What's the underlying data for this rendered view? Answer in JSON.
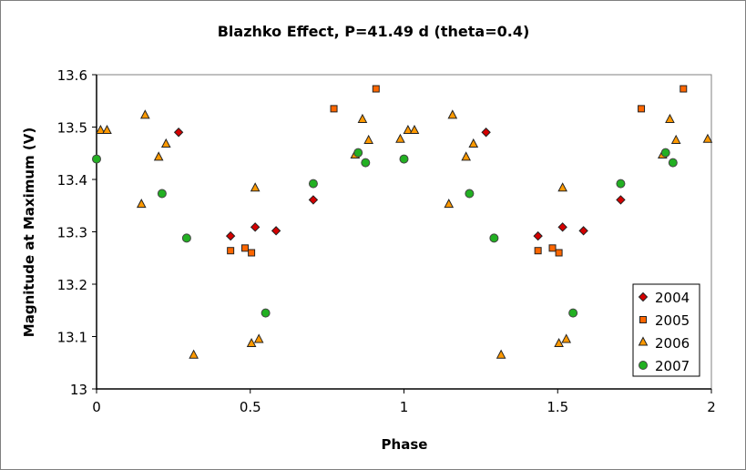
{
  "chart_data": {
    "type": "scatter",
    "title": "Blazhko Effect, P=41.49 d (theta=0.4)",
    "xlabel": "Phase",
    "ylabel": "Magnitude at Maximum (V)",
    "xlim": [
      0,
      2
    ],
    "ylim": [
      13.0,
      13.6
    ],
    "xticks": [
      "0",
      "0.5",
      "1",
      "1.5",
      "2"
    ],
    "xtick_values": [
      0,
      0.5,
      1,
      1.5,
      2
    ],
    "yticks": [
      "13",
      "13.1",
      "13.2",
      "13.3",
      "13.4",
      "13.5",
      "13.6"
    ],
    "ytick_values": [
      13.0,
      13.1,
      13.2,
      13.3,
      13.4,
      13.5,
      13.6
    ],
    "grid": false,
    "legend_position": "bottom-right",
    "series": [
      {
        "name": "2004",
        "marker": "diamond",
        "color": "#d40000",
        "x": [
          0.267,
          0.436,
          0.516,
          0.584,
          0.705,
          1.267,
          1.436,
          1.516,
          1.584,
          1.705
        ],
        "y": [
          13.49,
          13.292,
          13.309,
          13.302,
          13.361,
          13.49,
          13.292,
          13.309,
          13.302,
          13.361
        ]
      },
      {
        "name": "2005",
        "marker": "square",
        "color": "#ff6600",
        "x": [
          0.436,
          0.483,
          0.504,
          0.772,
          0.909,
          1.436,
          1.483,
          1.504,
          1.772,
          1.909
        ],
        "y": [
          13.264,
          13.269,
          13.26,
          13.535,
          13.573,
          13.264,
          13.269,
          13.26,
          13.535,
          13.573
        ]
      },
      {
        "name": "2006",
        "marker": "triangle",
        "color": "#ff9900",
        "x": [
          0.013,
          0.034,
          0.146,
          0.158,
          0.202,
          0.226,
          0.316,
          0.504,
          0.516,
          0.528,
          0.841,
          0.865,
          0.885,
          0.988,
          1.013,
          1.034,
          1.146,
          1.158,
          1.202,
          1.226,
          1.316,
          1.504,
          1.516,
          1.528,
          1.841,
          1.865,
          1.885,
          1.988
        ],
        "y": [
          13.493,
          13.493,
          13.352,
          13.522,
          13.442,
          13.467,
          13.064,
          13.086,
          13.383,
          13.094,
          13.446,
          13.514,
          13.474,
          13.476,
          13.493,
          13.493,
          13.352,
          13.522,
          13.442,
          13.467,
          13.064,
          13.086,
          13.383,
          13.094,
          13.446,
          13.514,
          13.474,
          13.476
        ]
      },
      {
        "name": "2007",
        "marker": "circle",
        "color": "#22b022",
        "x": [
          0.0,
          0.213,
          0.293,
          0.55,
          0.705,
          0.851,
          0.875,
          1.0,
          1.213,
          1.293,
          1.55,
          1.705,
          1.851,
          1.875
        ],
        "y": [
          13.439,
          13.373,
          13.288,
          13.145,
          13.392,
          13.451,
          13.432,
          13.439,
          13.373,
          13.288,
          13.145,
          13.392,
          13.451,
          13.432
        ]
      }
    ]
  }
}
